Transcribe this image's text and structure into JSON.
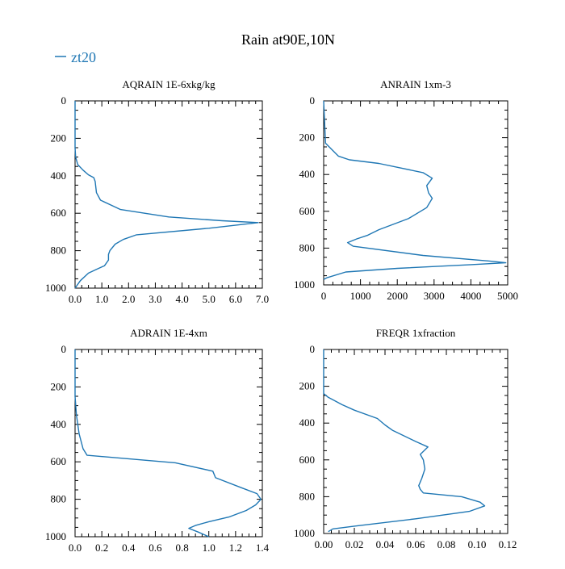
{
  "figure": {
    "title": "Rain at90E,10N",
    "legend": {
      "label": "zt20",
      "color": "#1f77b4",
      "position": "top-left"
    }
  },
  "chart_data": [
    {
      "type": "line",
      "title": "AQRAIN  1E-6xkg/kg",
      "xlim": [
        0,
        7
      ],
      "ylim": [
        1000,
        0
      ],
      "xticks": [
        0,
        1,
        2,
        3,
        4,
        5,
        6,
        7
      ],
      "xtick_labels": [
        "0.0",
        "1.0",
        "2.0",
        "3.0",
        "4.0",
        "5.0",
        "6.0",
        "7.0"
      ],
      "yticks": [
        0,
        200,
        400,
        600,
        800,
        1000
      ],
      "ytick_labels": [
        "0",
        "200",
        "400",
        "600",
        "800",
        "1000"
      ],
      "series": [
        {
          "name": "zt20",
          "color": "#1f77b4",
          "x": [
            0,
            0,
            0.02,
            0.1,
            0.3,
            0.5,
            0.7,
            0.75,
            0.8,
            0.95,
            1.7,
            3.5,
            5.5,
            6.85,
            5.0,
            2.3,
            1.8,
            1.5,
            1.3,
            1.25,
            1.25,
            1.2,
            1.1,
            0.8,
            0.5,
            0.2,
            0
          ],
          "y": [
            0,
            250,
            300,
            340,
            370,
            395,
            410,
            430,
            490,
            530,
            580,
            620,
            640,
            650,
            680,
            715,
            740,
            765,
            800,
            820,
            850,
            860,
            880,
            900,
            920,
            960,
            1000
          ]
        }
      ]
    },
    {
      "type": "line",
      "title": "ANRAIN  1xm-3",
      "xlim": [
        0,
        5000
      ],
      "ylim": [
        1000,
        0
      ],
      "xticks": [
        0,
        1000,
        2000,
        3000,
        4000,
        5000
      ],
      "xtick_labels": [
        "0",
        "1000",
        "2000",
        "3000",
        "4000",
        "5000"
      ],
      "yticks": [
        0,
        200,
        400,
        600,
        800,
        1000
      ],
      "ytick_labels": [
        "0",
        "200",
        "400",
        "600",
        "800",
        "1000"
      ],
      "series": [
        {
          "name": "zt20",
          "color": "#1f77b4",
          "x": [
            0,
            50,
            200,
            400,
            700,
            1500,
            2700,
            2950,
            2800,
            2850,
            2950,
            2800,
            2300,
            1500,
            1200,
            900,
            650,
            800,
            2700,
            4500,
            4950,
            4000,
            2000,
            600,
            100,
            0
          ],
          "y": [
            0,
            230,
            260,
            300,
            320,
            340,
            390,
            420,
            460,
            500,
            530,
            580,
            640,
            700,
            730,
            750,
            770,
            790,
            840,
            870,
            880,
            890,
            910,
            930,
            960,
            970
          ]
        }
      ]
    },
    {
      "type": "line",
      "title": "ADRAIN  1E-4xm",
      "xlim": [
        0,
        1.4
      ],
      "ylim": [
        1000,
        0
      ],
      "xticks": [
        0,
        0.2,
        0.4,
        0.6,
        0.8,
        1.0,
        1.2,
        1.4
      ],
      "xtick_labels": [
        "0.0",
        "0.2",
        "0.4",
        "0.6",
        "0.8",
        "1.0",
        "1.2",
        "1.4"
      ],
      "yticks": [
        0,
        200,
        400,
        600,
        800,
        1000
      ],
      "ytick_labels": [
        "0",
        "200",
        "400",
        "600",
        "800",
        "1000"
      ],
      "series": [
        {
          "name": "zt20",
          "color": "#1f77b4",
          "x": [
            0,
            0,
            0.01,
            0.03,
            0.06,
            0.09,
            0.75,
            1.03,
            1.05,
            1.25,
            1.36,
            1.39,
            1.35,
            1.28,
            1.15,
            1.0,
            0.9,
            0.85,
            0.92,
            1.0
          ],
          "y": [
            0,
            250,
            350,
            450,
            530,
            565,
            605,
            650,
            685,
            740,
            770,
            800,
            830,
            860,
            895,
            920,
            940,
            955,
            975,
            1000
          ]
        }
      ]
    },
    {
      "type": "line",
      "title": "FREQR  1xfraction",
      "xlim": [
        0,
        0.12
      ],
      "ylim": [
        1000,
        0
      ],
      "xticks": [
        0,
        0.02,
        0.04,
        0.06,
        0.08,
        0.1,
        0.12
      ],
      "xtick_labels": [
        "0.00",
        "0.02",
        "0.04",
        "0.06",
        "0.08",
        "0.10",
        "0.12"
      ],
      "yticks": [
        0,
        200,
        400,
        600,
        800,
        1000
      ],
      "ytick_labels": [
        "0",
        "200",
        "400",
        "600",
        "800",
        "1000"
      ],
      "series": [
        {
          "name": "zt20",
          "color": "#1f77b4",
          "x": [
            0,
            0,
            0.003,
            0.012,
            0.02,
            0.035,
            0.04,
            0.045,
            0.06,
            0.068,
            0.063,
            0.065,
            0.066,
            0.064,
            0.062,
            0.063,
            0.065,
            0.09,
            0.102,
            0.105,
            0.095,
            0.06,
            0.02,
            0.006,
            0.003
          ],
          "y": [
            0,
            240,
            260,
            300,
            330,
            375,
            410,
            440,
            500,
            530,
            570,
            600,
            650,
            700,
            740,
            760,
            780,
            800,
            830,
            850,
            880,
            920,
            960,
            975,
            990
          ]
        }
      ]
    }
  ]
}
